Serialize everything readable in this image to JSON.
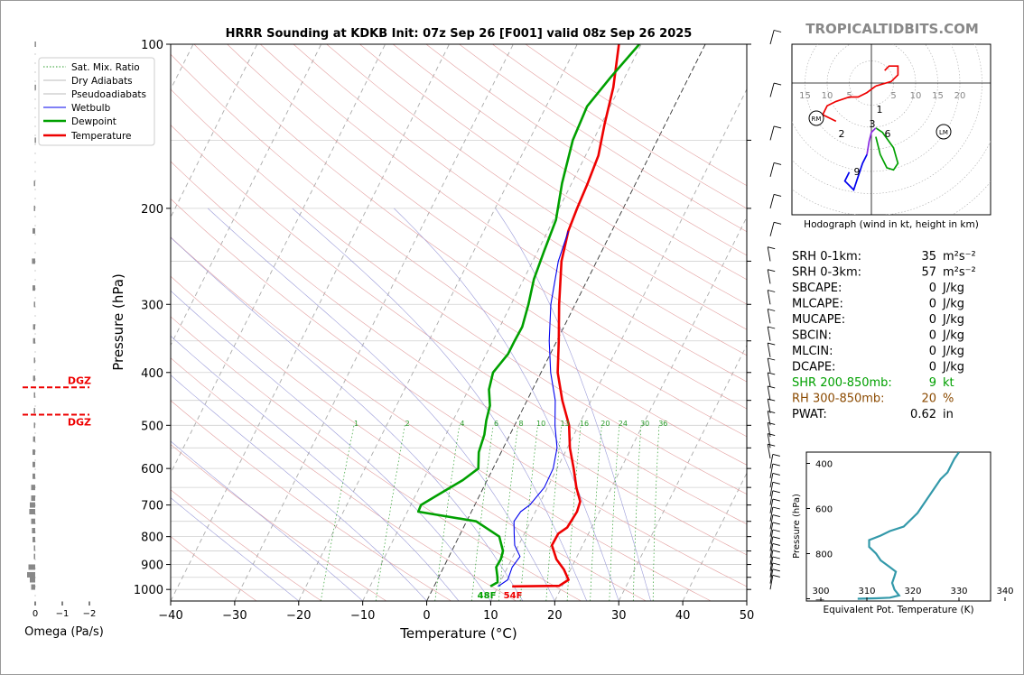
{
  "chart_data": [
    {
      "type": "line",
      "subtype": "skew-t log-p",
      "title": "HRRR Sounding at KDKB Init: 07z Sep 26 [F001] valid 08z Sep 26 2025",
      "xlabel": "Temperature (°C)",
      "ylabel": "Pressure (hPa)",
      "xlim": [
        -40,
        50
      ],
      "ylim": [
        1050,
        100
      ],
      "yscale": "log",
      "x_ticks": [
        "−40",
        "−30",
        "−20",
        "−10",
        "0",
        "10",
        "20",
        "30",
        "40",
        "50"
      ],
      "y_ticks": [
        "100",
        "200",
        "300",
        "400",
        "500",
        "600",
        "700",
        "800",
        "900",
        "1000"
      ],
      "legend_entries": [
        "Sat. Mix. Ratio",
        "Dry Adiabats",
        "Pseudoadiabats",
        "Wetbulb",
        "Dewpoint",
        "Temperature"
      ],
      "legend_position": "top-left",
      "mixing_ratio_labels": [
        "1",
        "2",
        "4",
        "6",
        "8",
        "10",
        "13",
        "16",
        "20",
        "24",
        "30",
        "36"
      ],
      "surface_labels": {
        "dewpoint": "48F",
        "temperature": "54F"
      },
      "series": [
        {
          "name": "Temperature",
          "color": "#ee0000",
          "points": [
            [
              987,
              12.2
            ],
            [
              985,
              19.5
            ],
            [
              960,
              20.5
            ],
            [
              920,
              19
            ],
            [
              880,
              17
            ],
            [
              830,
              15.2
            ],
            [
              790,
              15.3
            ],
            [
              770,
              16.2
            ],
            [
              720,
              16.5
            ],
            [
              690,
              16.2
            ],
            [
              650,
              14.5
            ],
            [
              600,
              12.6
            ],
            [
              550,
              10.4
            ],
            [
              500,
              8.5
            ],
            [
              450,
              5.5
            ],
            [
              400,
              2.6
            ],
            [
              350,
              0.3
            ],
            [
              300,
              -2.5
            ],
            [
              250,
              -5.5
            ],
            [
              220,
              -6.8
            ],
            [
              200,
              -7.2
            ],
            [
              180,
              -7.5
            ],
            [
              160,
              -8
            ],
            [
              140,
              -9.5
            ],
            [
              120,
              -11
            ],
            [
              100,
              -13.5
            ]
          ]
        },
        {
          "name": "Dewpoint",
          "color": "#00a000",
          "points": [
            [
              987,
              8.8
            ],
            [
              970,
              9.6
            ],
            [
              950,
              9.2
            ],
            [
              910,
              8.2
            ],
            [
              880,
              8.3
            ],
            [
              850,
              8
            ],
            [
              800,
              6.3
            ],
            [
              750,
              1.5
            ],
            [
              720,
              -8.3
            ],
            [
              700,
              -8.4
            ],
            [
              670,
              -6.5
            ],
            [
              630,
              -3.8
            ],
            [
              600,
              -2.3
            ],
            [
              560,
              -3.5
            ],
            [
              520,
              -4
            ],
            [
              490,
              -4.8
            ],
            [
              460,
              -5.4
            ],
            [
              430,
              -6.8
            ],
            [
              400,
              -7.5
            ],
            [
              370,
              -6.6
            ],
            [
              350,
              -6.6
            ],
            [
              330,
              -6.5
            ],
            [
              300,
              -7.3
            ],
            [
              270,
              -8.4
            ],
            [
              240,
              -9
            ],
            [
              210,
              -9.6
            ],
            [
              180,
              -11.5
            ],
            [
              150,
              -13.2
            ],
            [
              130,
              -13.6
            ],
            [
              115,
              -12.2
            ],
            [
              100,
              -10.3
            ]
          ]
        },
        {
          "name": "Wetbulb",
          "color": "#0000ee",
          "points": [
            [
              987,
              10
            ],
            [
              960,
              11
            ],
            [
              910,
              10.7
            ],
            [
              870,
              11.1
            ],
            [
              830,
              9.4
            ],
            [
              790,
              8.4
            ],
            [
              750,
              7.4
            ],
            [
              720,
              7.7
            ],
            [
              700,
              8.6
            ],
            [
              650,
              9.5
            ],
            [
              600,
              9.4
            ],
            [
              550,
              8.4
            ],
            [
              500,
              6.3
            ],
            [
              450,
              4.4
            ],
            [
              400,
              1.5
            ],
            [
              350,
              -1.2
            ],
            [
              300,
              -3.8
            ],
            [
              250,
              -6
            ],
            [
              220,
              -6.8
            ]
          ]
        }
      ],
      "omega_panel": {
        "xlabel": "Omega (Pa/s)",
        "x_ticks": [
          "0",
          "−1",
          "−2"
        ],
        "dgz_label": "DGZ",
        "dgz_pressures": [
          426,
          478
        ],
        "color": "#888888",
        "points": [
          [
            990,
            0.15
          ],
          [
            960,
            0.2
          ],
          [
            940,
            0.3
          ],
          [
            910,
            0.25
          ],
          [
            870,
            0.05
          ],
          [
            840,
            0.05
          ],
          [
            810,
            0.1
          ],
          [
            780,
            0.12
          ],
          [
            750,
            0.15
          ],
          [
            720,
            0.22
          ],
          [
            700,
            0.2
          ],
          [
            680,
            0.15
          ],
          [
            650,
            0.15
          ],
          [
            620,
            0.1
          ],
          [
            590,
            0.1
          ],
          [
            560,
            0.1
          ],
          [
            530,
            0.08
          ],
          [
            500,
            0.05
          ],
          [
            470,
            0.05
          ],
          [
            440,
            0.05
          ],
          [
            410,
            0.08
          ],
          [
            380,
            0.05
          ],
          [
            350,
            0.08
          ],
          [
            330,
            0.08
          ],
          [
            300,
            0.05
          ],
          [
            280,
            0.1
          ],
          [
            250,
            0.12
          ],
          [
            220,
            0.1
          ],
          [
            200,
            0.05
          ],
          [
            180,
            0.05
          ],
          [
            150,
            0.02
          ],
          [
            120,
            0.02
          ],
          [
            100,
            0.02
          ]
        ]
      }
    },
    {
      "type": "line",
      "subtype": "hodograph",
      "xlabel": "Hodograph (wind in kt, height in km)",
      "ring_labels": [
        "15",
        "10",
        "5",
        "5",
        "10",
        "15",
        "20"
      ],
      "markers": [
        "RM",
        "LM"
      ],
      "height_labels": [
        "1",
        "2",
        "3",
        "6",
        "9"
      ],
      "segments": [
        {
          "color": "#ee0000",
          "points": [
            [
              1,
              7.5
            ],
            [
              4.5,
              8.5
            ],
            [
              6,
              10
            ],
            [
              6,
              12
            ],
            [
              4,
              12
            ],
            [
              3,
              11
            ]
          ]
        },
        {
          "color": "#ee0000",
          "points": [
            [
              1,
              7.5
            ],
            [
              -1,
              6
            ],
            [
              -3,
              5
            ],
            [
              -5,
              5
            ],
            [
              -8,
              4
            ],
            [
              -10,
              3
            ],
            [
              -11,
              1
            ],
            [
              -8,
              -0.5
            ]
          ]
        },
        {
          "color": "#00a000",
          "points": [
            [
              1,
              -2
            ],
            [
              2.5,
              -3
            ],
            [
              5,
              -6.5
            ],
            [
              6,
              -10
            ],
            [
              5,
              -11.5
            ],
            [
              3.5,
              -11
            ],
            [
              2,
              -8
            ],
            [
              1,
              -4
            ]
          ]
        },
        {
          "color": "#8a2be2",
          "points": [
            [
              1,
              -2
            ],
            [
              0,
              -3
            ],
            [
              -0.5,
              -5
            ],
            [
              -1,
              -8
            ]
          ]
        },
        {
          "color": "#0000ee",
          "points": [
            [
              -1,
              -8
            ],
            [
              -2,
              -10
            ],
            [
              -3,
              -13
            ],
            [
              -4,
              -16
            ],
            [
              -6,
              -14
            ],
            [
              -5,
              -12
            ]
          ]
        }
      ]
    },
    {
      "type": "line",
      "subtype": "theta-e profile",
      "xlabel": "Equivalent Pot. Temperature (K)",
      "ylabel": "Pressure (hPa)",
      "x_ticks": [
        "300",
        "310",
        "320",
        "330",
        "340"
      ],
      "y_ticks": [
        "400",
        "600",
        "800",
        "—"
      ],
      "xlim": [
        300,
        340
      ],
      "color": "#3399aa",
      "points": [
        [
          1000,
          308
        ],
        [
          998,
          312
        ],
        [
          995,
          315
        ],
        [
          985,
          317
        ],
        [
          960,
          316
        ],
        [
          930,
          315.5
        ],
        [
          900,
          316
        ],
        [
          880,
          316.3
        ],
        [
          860,
          315
        ],
        [
          830,
          313
        ],
        [
          800,
          312
        ],
        [
          770,
          310.5
        ],
        [
          740,
          310.5
        ],
        [
          720,
          313
        ],
        [
          700,
          315
        ],
        [
          680,
          318
        ],
        [
          650,
          319.5
        ],
        [
          620,
          321
        ],
        [
          590,
          322
        ],
        [
          560,
          323
        ],
        [
          530,
          324
        ],
        [
          500,
          325
        ],
        [
          470,
          326
        ],
        [
          440,
          327.5
        ],
        [
          420,
          328
        ],
        [
          400,
          328.5
        ],
        [
          380,
          329
        ],
        [
          350,
          330
        ]
      ]
    }
  ],
  "source": "TROPICALTIDBITS.COM",
  "indices": [
    {
      "label": "SRH 0-1km:",
      "value": "35",
      "unit": "m²s⁻²",
      "color": "#000000"
    },
    {
      "label": "SRH 0-3km:",
      "value": "57",
      "unit": "m²s⁻²",
      "color": "#000000"
    },
    {
      "label": "SBCAPE:",
      "value": "0",
      "unit": "J/kg",
      "color": "#000000"
    },
    {
      "label": "MLCAPE:",
      "value": "0",
      "unit": "J/kg",
      "color": "#000000"
    },
    {
      "label": "MUCAPE:",
      "value": "0",
      "unit": "J/kg",
      "color": "#000000"
    },
    {
      "label": "SBCIN:",
      "value": "0",
      "unit": "J/kg",
      "color": "#000000"
    },
    {
      "label": "MLCIN:",
      "value": "0",
      "unit": "J/kg",
      "color": "#000000"
    },
    {
      "label": "DCAPE:",
      "value": "0",
      "unit": "J/kg",
      "color": "#000000"
    },
    {
      "label": "SHR 200-850mb:",
      "value": "9",
      "unit": "kt",
      "color": "#00a000"
    },
    {
      "label": "RH 300-850mb:",
      "value": "20",
      "unit": "%",
      "color": "#8b4a00"
    },
    {
      "label": "PWAT:",
      "value": "0.62",
      "unit": "in",
      "color": "#000000"
    }
  ]
}
